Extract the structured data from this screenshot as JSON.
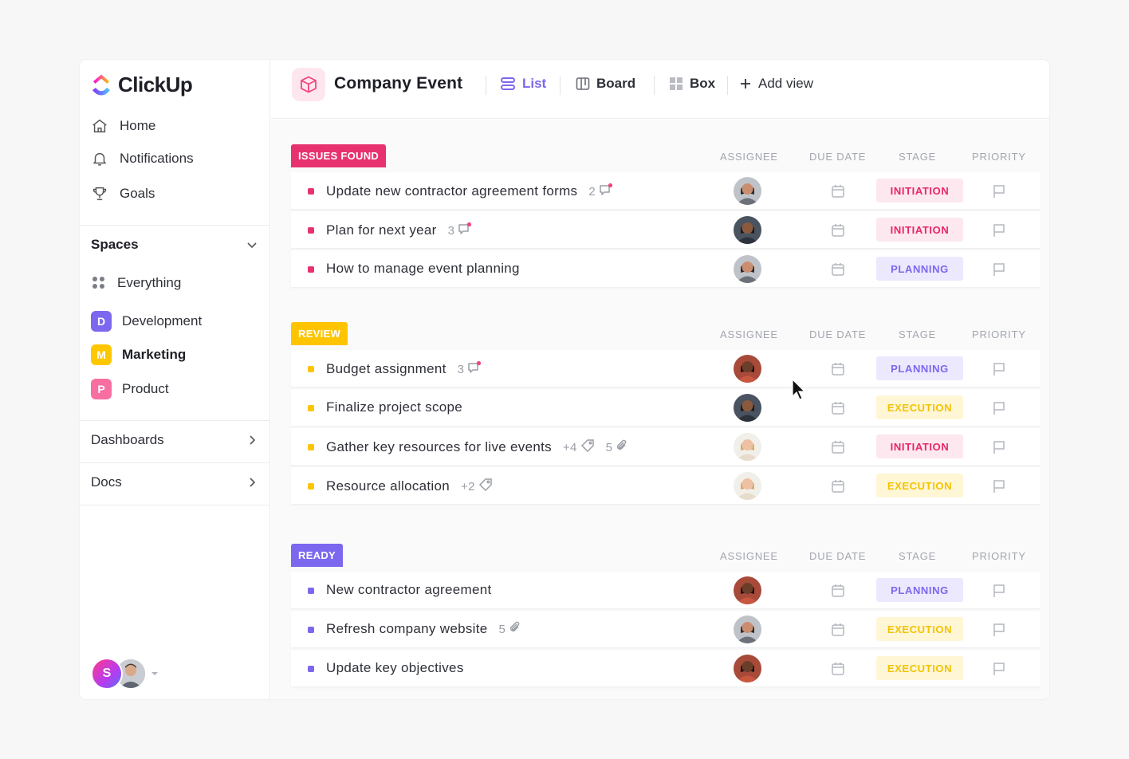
{
  "brand": {
    "name": "ClickUp"
  },
  "sidebar": {
    "nav": [
      {
        "label": "Home",
        "icon": "home-icon"
      },
      {
        "label": "Notifications",
        "icon": "bell-icon"
      },
      {
        "label": "Goals",
        "icon": "trophy-icon"
      }
    ],
    "spaces_label": "Spaces",
    "everything_label": "Everything",
    "spaces": [
      {
        "letter": "D",
        "label": "Development",
        "color": "#7b68ee"
      },
      {
        "letter": "M",
        "label": "Marketing",
        "color": "#ffc700"
      },
      {
        "letter": "P",
        "label": "Product",
        "color": "#f76fa0"
      }
    ],
    "dashboards_label": "Dashboards",
    "docs_label": "Docs",
    "user_initial": "S"
  },
  "header": {
    "project_title": "Company Event",
    "views": [
      {
        "label": "List",
        "icon": "list-icon",
        "active": true
      },
      {
        "label": "Board",
        "icon": "board-icon",
        "active": false
      },
      {
        "label": "Box",
        "icon": "box-icon",
        "active": false
      },
      {
        "label": "Add view",
        "icon": "plus-icon",
        "active": false
      }
    ]
  },
  "columns": {
    "assignee": "ASSIGNEE",
    "due_date": "DUE DATE",
    "stage": "STAGE",
    "priority": "PRIORITY"
  },
  "stage_colors": {
    "INITIATION": {
      "bg": "#fde8ef",
      "fg": "#e8256a"
    },
    "PLANNING": {
      "bg": "#ece8fd",
      "fg": "#7b68ee"
    },
    "EXECUTION": {
      "bg": "#fff6d6",
      "fg": "#f3c300"
    }
  },
  "groups": [
    {
      "label": "ISSUES FOUND",
      "color": "#e8326f",
      "tasks": [
        {
          "name": "Update new contractor agreement forms",
          "comments": "2",
          "avatar": "man-a",
          "stage": "INITIATION"
        },
        {
          "name": "Plan for next year",
          "comments": "3",
          "avatar": "man-b",
          "stage": "INITIATION"
        },
        {
          "name": "How to manage event planning",
          "avatar": "man-a",
          "stage": "PLANNING"
        }
      ]
    },
    {
      "label": "REVIEW",
      "color": "#ffc400",
      "tasks": [
        {
          "name": "Budget assignment",
          "comments": "3",
          "avatar": "woman-a",
          "stage": "PLANNING"
        },
        {
          "name": "Finalize project scope",
          "avatar": "man-b",
          "stage": "EXECUTION"
        },
        {
          "name": "Gather key resources for live events",
          "tags": "+4",
          "attachments": "5",
          "avatar": "woman-b",
          "stage": "INITIATION"
        },
        {
          "name": "Resource allocation",
          "tags": "+2",
          "avatar": "woman-b",
          "stage": "EXECUTION"
        }
      ]
    },
    {
      "label": "READY",
      "color": "#7b68ee",
      "tasks": [
        {
          "name": "New contractor agreement",
          "avatar": "woman-a",
          "stage": "PLANNING"
        },
        {
          "name": "Refresh company website",
          "attachments": "5",
          "avatar": "man-a",
          "stage": "EXECUTION"
        },
        {
          "name": "Update key objectives",
          "avatar": "woman-a",
          "stage": "EXECUTION"
        }
      ]
    }
  ]
}
